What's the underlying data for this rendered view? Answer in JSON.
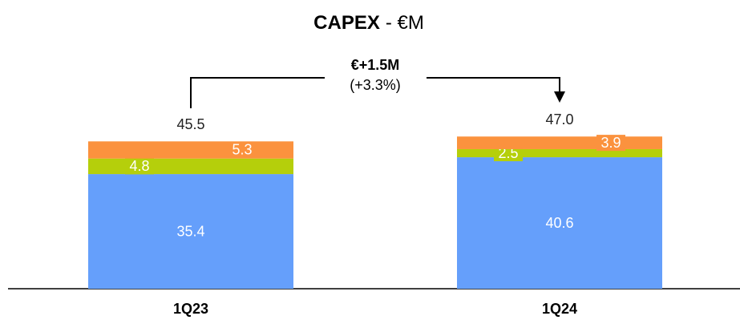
{
  "chart_data": {
    "type": "stacked_bar",
    "title": [
      "CAPEX",
      "- €M"
    ],
    "categories": [
      "1Q23",
      "1Q24"
    ],
    "series": [
      {
        "color": "#659ffb",
        "values": [
          35.4,
          40.6
        ]
      },
      {
        "color": "#b5cf0b",
        "values": [
          4.8,
          2.5
        ]
      },
      {
        "color": "#fb923e",
        "values": [
          5.3,
          3.9
        ]
      }
    ],
    "totals": [
      45.5,
      47.0
    ],
    "total_labels": [
      "45.5",
      "47.0"
    ],
    "annotation": [
      "€+1.5M",
      "(+3.3%)"
    ],
    "ylim": [
      0,
      80
    ]
  }
}
